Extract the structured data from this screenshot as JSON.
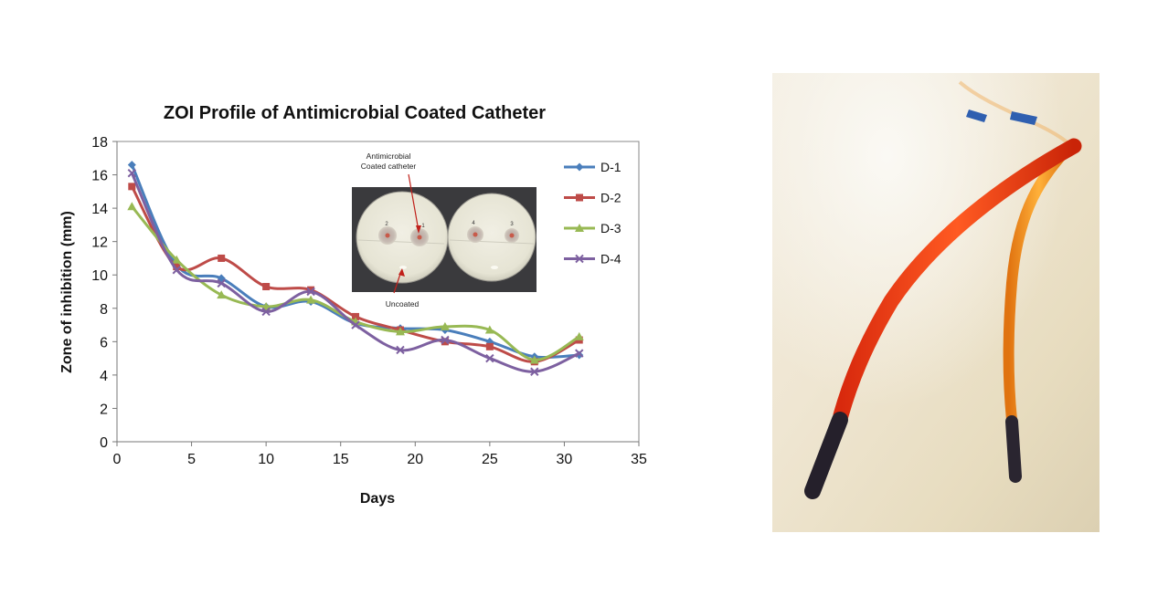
{
  "chart_data": {
    "type": "line",
    "title": "ZOI Profile of Antimicrobial Coated Catheter",
    "xlabel": "Days",
    "ylabel": "Zone of inhibition (mm)",
    "xlim": [
      0,
      35
    ],
    "ylim": [
      0,
      18
    ],
    "xticks": [
      0,
      5,
      10,
      15,
      20,
      25,
      30,
      35
    ],
    "yticks": [
      0,
      2,
      4,
      6,
      8,
      10,
      12,
      14,
      16,
      18
    ],
    "x": [
      1,
      4,
      7,
      10,
      13,
      16,
      19,
      22,
      25,
      28,
      31
    ],
    "series": [
      {
        "name": "D-1",
        "color": "#4a7ebb",
        "marker": "diamond",
        "values": [
          16.6,
          10.6,
          9.8,
          8.1,
          8.4,
          7.1,
          6.8,
          6.7,
          6.0,
          5.1,
          5.2
        ]
      },
      {
        "name": "D-2",
        "color": "#be4b48",
        "marker": "square",
        "values": [
          15.3,
          10.5,
          11.0,
          9.3,
          9.1,
          7.5,
          6.7,
          6.0,
          5.7,
          4.8,
          6.1
        ]
      },
      {
        "name": "D-3",
        "color": "#98b954",
        "marker": "triangle",
        "values": [
          14.1,
          10.9,
          8.8,
          8.1,
          8.5,
          7.2,
          6.6,
          6.9,
          6.7,
          4.9,
          6.3
        ]
      },
      {
        "name": "D-4",
        "color": "#7d60a0",
        "marker": "x",
        "values": [
          16.1,
          10.3,
          9.5,
          7.8,
          9.0,
          7.0,
          5.5,
          6.1,
          5.0,
          4.2,
          5.3
        ]
      }
    ],
    "legend_position": "right",
    "inset": {
      "label_coated": "Antimicrobial\nCoated catheter",
      "label_uncoated": "Uncoated",
      "plate_labels": [
        "2",
        "1",
        "4",
        "3"
      ]
    }
  }
}
